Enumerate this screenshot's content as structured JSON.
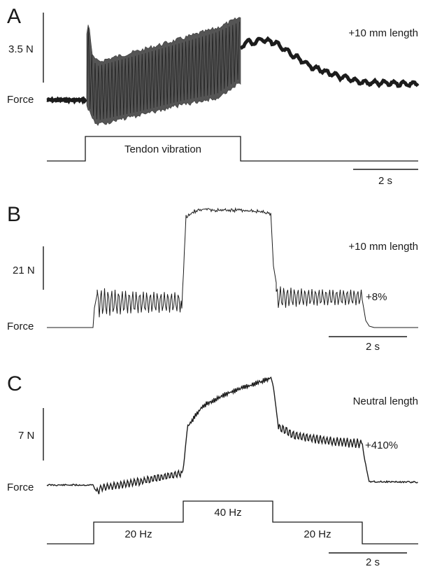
{
  "colors": {
    "trace": "#1c1c1c",
    "vibration_fill": "#555555",
    "background": "#ffffff"
  },
  "chart_data": [
    {
      "type": "line",
      "panel": "A",
      "condition": "+10 mm length",
      "force_label": "Force",
      "force_scale_bar": "3.5 N",
      "time_scale_bar": "2 s",
      "stimulus_labels": [
        "Tendon vibration"
      ]
    },
    {
      "type": "line",
      "panel": "B",
      "condition": "+10 mm length",
      "force_label": "Force",
      "force_scale_bar": "21 N",
      "time_scale_bar": "2 s",
      "annotation": "+8%",
      "stimulus_labels": []
    },
    {
      "type": "line",
      "panel": "C",
      "condition": "Neutral length",
      "force_label": "Force",
      "force_scale_bar": "7 N",
      "time_scale_bar": "2 s",
      "annotation": "+410%",
      "stimulus_labels": [
        "20 Hz",
        "40 Hz",
        "20 Hz"
      ]
    }
  ]
}
